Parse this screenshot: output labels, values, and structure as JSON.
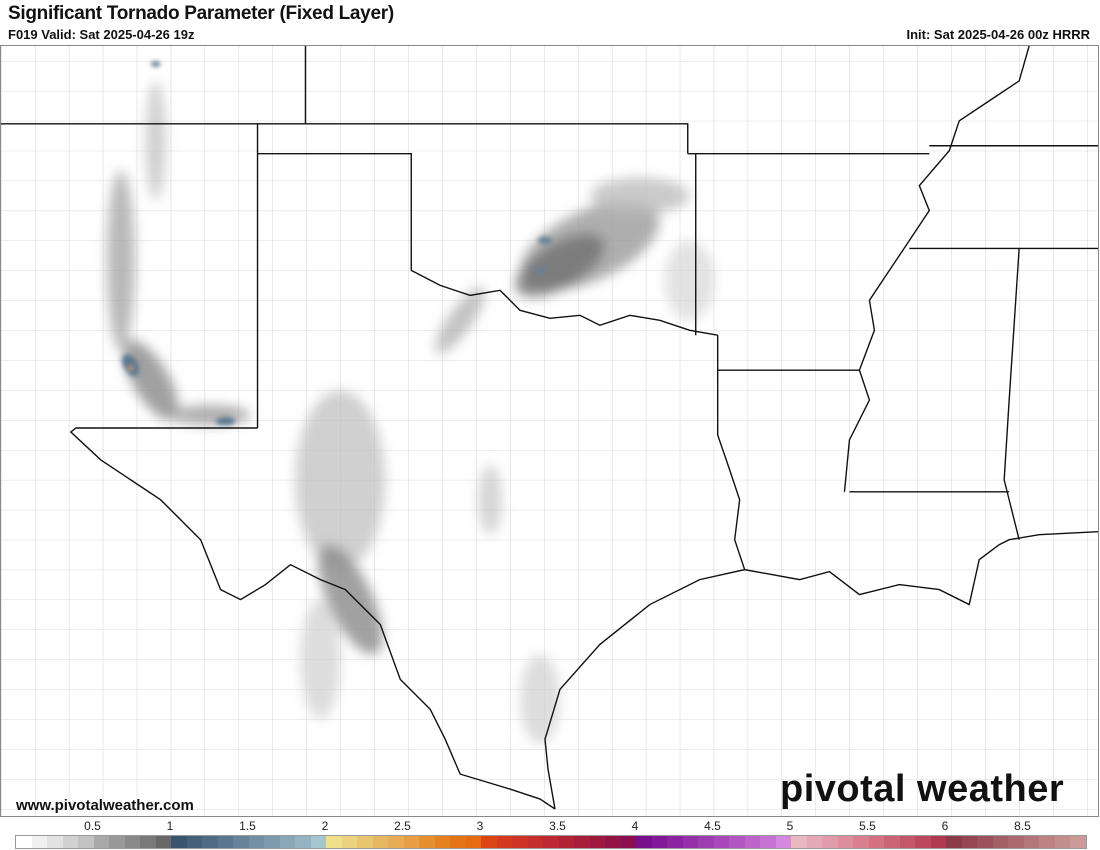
{
  "header": {
    "title": "Significant Tornado Parameter (Fixed Layer)",
    "valid": "F019 Valid: Sat 2025-04-26 19z",
    "init": "Init: Sat 2025-04-26 00z HRRR"
  },
  "footer": {
    "url": "www.pivotalweather.com",
    "logo": "pivotal weather"
  },
  "colorbar": {
    "tick_labels": [
      "0.5",
      "1",
      "1.5",
      "2",
      "2.5",
      "3",
      "3.5",
      "4",
      "4.5",
      "5",
      "5.5",
      "6",
      "8.5"
    ],
    "colors": [
      "#ffffff",
      "#f0f0f0",
      "#e2e2e2",
      "#d2d2d2",
      "#c2c2c2",
      "#a9a9a9",
      "#999999",
      "#898989",
      "#797979",
      "#686868",
      "#3a5570",
      "#45607a",
      "#506b85",
      "#5b778f",
      "#678399",
      "#728fa3",
      "#7e9bad",
      "#8aa7b7",
      "#96b3c1",
      "#a4c6cf",
      "#efe08a",
      "#ebd27e",
      "#e8c670",
      "#e6b862",
      "#e8ac55",
      "#e89e44",
      "#e68f30",
      "#e58120",
      "#e57512",
      "#e56c10",
      "#dd4514",
      "#d43a20",
      "#cd3425",
      "#c52e2a",
      "#bd2930",
      "#b22335",
      "#a81e3a",
      "#9e1840",
      "#931346",
      "#8a1050",
      "#78108c",
      "#82189a",
      "#8c24a2",
      "#9530aa",
      "#9e3cb2",
      "#a848ba",
      "#b256c2",
      "#bc64ca",
      "#c672d2",
      "#d488e0",
      "#e8b8c0",
      "#e4aab4",
      "#e09ca8",
      "#dc8e9c",
      "#d88090",
      "#d47284",
      "#cc6478",
      "#c4566c",
      "#bc4860",
      "#b03a52",
      "#8a3a48",
      "#944652",
      "#9c525c",
      "#a45e66",
      "#ac6a70",
      "#b4767a",
      "#bc8284",
      "#c48e8e",
      "#cc9a98"
    ]
  },
  "map": {
    "border_color": "#111111",
    "county_color": "#b0b0b0",
    "shading": "STP field (gray/blue)"
  }
}
